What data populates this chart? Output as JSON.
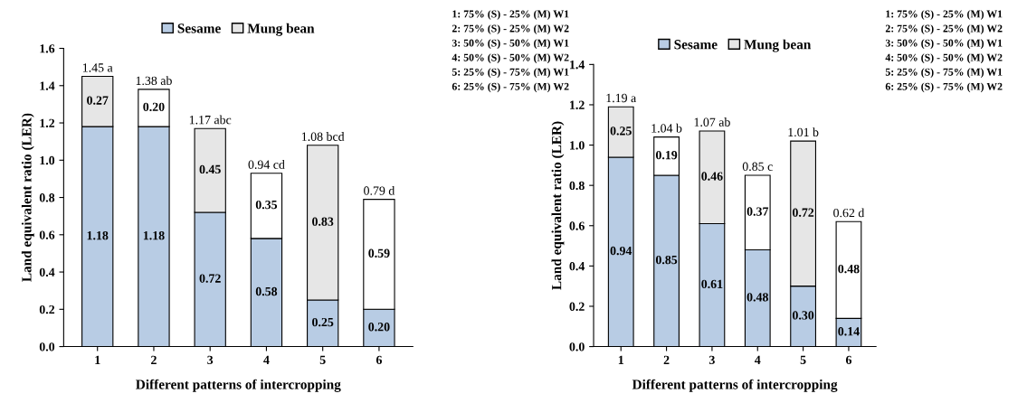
{
  "chart_data": [
    {
      "type": "bar",
      "stacked": true,
      "xlabel": "Different patterns of intercropping",
      "ylabel": "Land equivalent ratio (LER)",
      "categories": [
        "1",
        "2",
        "3",
        "4",
        "5",
        "6"
      ],
      "ylim": [
        0,
        1.6
      ],
      "yticks": [
        {
          "value": 0,
          "label": "0.0"
        },
        {
          "value": 0.2,
          "label": "0.2"
        },
        {
          "value": 0.4,
          "label": "0.4"
        },
        {
          "value": 0.6,
          "label": "0.6"
        },
        {
          "value": 0.8,
          "label": "0.8"
        },
        {
          "value": 1.0,
          "label": "1.0"
        },
        {
          "value": 1.2,
          "label": "1.2"
        },
        {
          "value": 1.4,
          "label": "1.4"
        },
        {
          "value": 1.6,
          "label": "1.6"
        }
      ],
      "legend": "top",
      "grid": false,
      "series": [
        {
          "name": "Sesame",
          "color": "#b8cce4",
          "values": [
            1.18,
            1.18,
            0.72,
            0.58,
            0.25,
            0.2
          ],
          "value_labels": [
            "1.18",
            "1.18",
            "0.72",
            "0.58",
            "0.25",
            "0.20"
          ]
        },
        {
          "name": "Mung bean",
          "color": "#e6e6e6",
          "colors": [
            "#e6e6e6",
            "#ffffff",
            "#e6e6e6",
            "#ffffff",
            "#e6e6e6",
            "#ffffff"
          ],
          "values": [
            0.27,
            0.2,
            0.45,
            0.35,
            0.83,
            0.59
          ],
          "value_labels": [
            "0.27",
            "0.20",
            "0.45",
            "0.35",
            "0.83",
            "0.59"
          ]
        }
      ],
      "totals": [
        "1.45 a",
        "1.38 ab",
        "1.17 abc",
        "0.94 cd",
        "1.08 bcd",
        "0.79 d"
      ],
      "annotations": [
        "1: 75% (S) - 25% (M) W1",
        "2: 75% (S) - 25% (M) W2",
        "3: 50% (S) - 50% (M) W1",
        "4: 50% (S) - 50% (M) W2",
        "5: 25% (S) - 75% (M) W1",
        "6: 25% (S) - 75% (M) W2"
      ]
    },
    {
      "type": "bar",
      "stacked": true,
      "xlabel": "Different patterns of intercropping",
      "ylabel": "Land equivalent ratio (LER)",
      "categories": [
        "1",
        "2",
        "3",
        "4",
        "5",
        "6"
      ],
      "ylim": [
        0,
        1.4
      ],
      "yticks": [
        {
          "value": 0,
          "label": "0.0"
        },
        {
          "value": 0.2,
          "label": "0.2"
        },
        {
          "value": 0.4,
          "label": "0.4"
        },
        {
          "value": 0.6,
          "label": "0.6"
        },
        {
          "value": 0.8,
          "label": "0.8"
        },
        {
          "value": 1.0,
          "label": "1.0"
        },
        {
          "value": 1.2,
          "label": "1.2"
        },
        {
          "value": 1.4,
          "label": "1.4"
        }
      ],
      "legend": "top",
      "grid": false,
      "series": [
        {
          "name": "Sesame",
          "color": "#b8cce4",
          "values": [
            0.94,
            0.85,
            0.61,
            0.48,
            0.3,
            0.14
          ],
          "value_labels": [
            "0.94",
            "0.85",
            "0.61",
            "0.48",
            "0.30",
            "0.14"
          ]
        },
        {
          "name": "Mung bean",
          "color": "#e6e6e6",
          "colors": [
            "#e6e6e6",
            "#ffffff",
            "#e6e6e6",
            "#ffffff",
            "#e6e6e6",
            "#ffffff"
          ],
          "values": [
            0.25,
            0.19,
            0.46,
            0.37,
            0.72,
            0.48
          ],
          "value_labels": [
            "0.25",
            "0.19",
            "0.46",
            "0.37",
            "0.72",
            "0.48"
          ]
        }
      ],
      "totals": [
        "1.19 a",
        "1.04 b",
        "1.07 ab",
        "0.85 c",
        "1.01 b",
        "0.62 d"
      ],
      "annotations": [
        "1: 75% (S) - 25% (M) W1",
        "2: 75% (S) - 25% (M) W2",
        "3: 50% (S) - 50% (M) W1",
        "4: 50% (S) - 50% (M) W2",
        "5: 25% (S) - 75% (M) W1",
        "6: 25% (S) - 75% (M) W2"
      ]
    }
  ]
}
